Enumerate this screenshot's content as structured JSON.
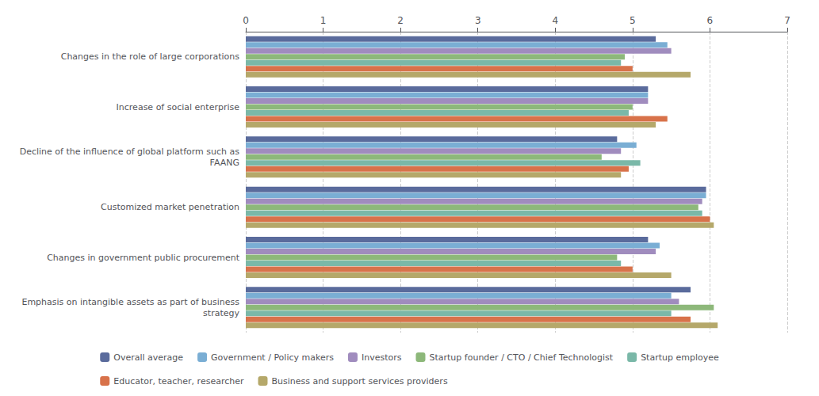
{
  "chart_data": {
    "type": "bar",
    "orientation": "horizontal",
    "categories": [
      "Changes in the role of large corporations",
      "Increase of social enterprise",
      "Decline of the influence of global platform such as\nFAANG",
      "Customized market penetration",
      "Changes in government public procurement",
      "Emphasis on intangible assets as part of business\nstrategy"
    ],
    "series": [
      {
        "name": "Overall average",
        "color": "#5a6b9c",
        "values": [
          5.3,
          5.2,
          4.8,
          5.95,
          5.2,
          5.75
        ]
      },
      {
        "name": "Government / Policy makers",
        "color": "#7aaed4",
        "values": [
          5.45,
          5.2,
          5.05,
          5.95,
          5.35,
          5.5
        ]
      },
      {
        "name": "Investors",
        "color": "#a08cbe",
        "values": [
          5.5,
          5.2,
          4.85,
          5.9,
          5.3,
          5.6
        ]
      },
      {
        "name": "Startup founder / CTO / Chief Technologist",
        "color": "#8db87a",
        "values": [
          4.9,
          5.0,
          4.6,
          5.85,
          4.8,
          6.05
        ]
      },
      {
        "name": "Startup employee",
        "color": "#7ab8a8",
        "values": [
          4.85,
          4.95,
          5.1,
          5.9,
          4.85,
          5.5
        ]
      },
      {
        "name": "Educator, teacher, researcher",
        "color": "#d8724a",
        "values": [
          5.0,
          5.45,
          4.95,
          6.0,
          5.0,
          5.75
        ]
      },
      {
        "name": "Business and support services providers",
        "color": "#b5a86a",
        "values": [
          5.75,
          5.3,
          4.85,
          6.05,
          5.5,
          6.1
        ]
      }
    ],
    "xlim": [
      0,
      7
    ],
    "xticks": [
      0,
      1,
      2,
      3,
      4,
      5,
      6,
      7
    ],
    "grid": true,
    "legend": "bottom"
  }
}
